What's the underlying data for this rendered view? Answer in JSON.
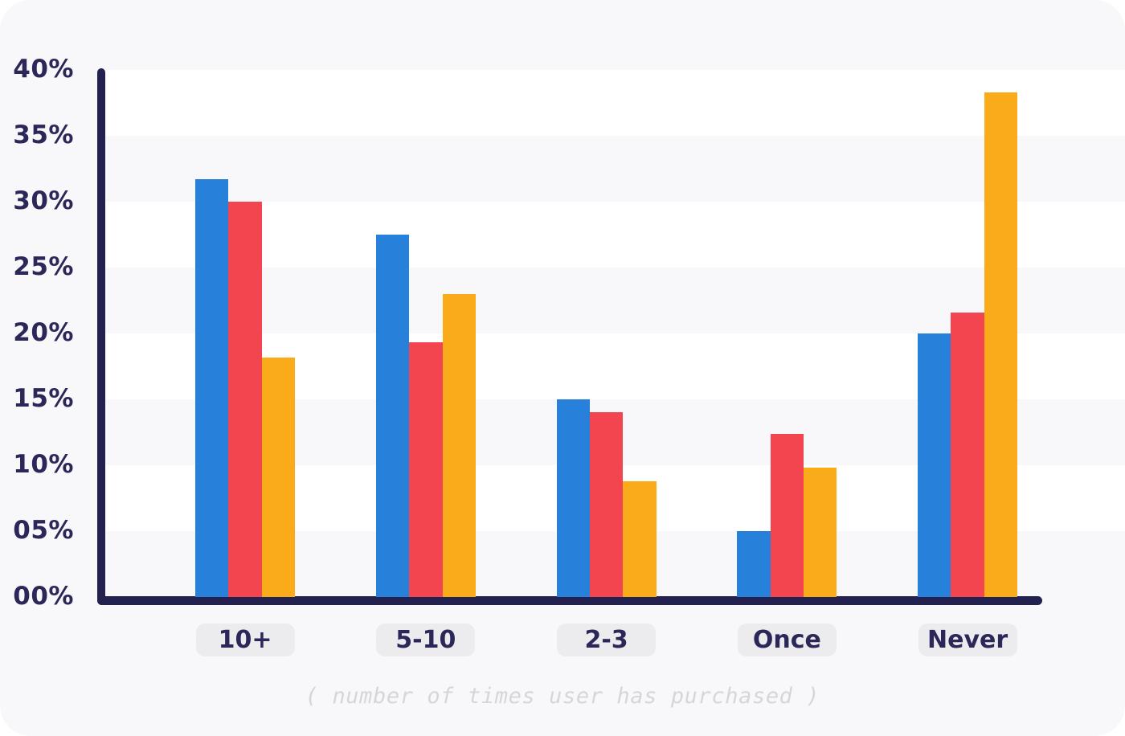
{
  "chart_data": {
    "type": "bar",
    "categories": [
      "10+",
      "5-10",
      "2-3",
      "Once",
      "Never"
    ],
    "series": [
      {
        "name": "blue",
        "color": "#2781db",
        "values": [
          31.7,
          27.5,
          15.0,
          5.0,
          20.0
        ]
      },
      {
        "name": "red",
        "color": "#f34550",
        "values": [
          30.0,
          19.3,
          14.0,
          12.4,
          21.6
        ]
      },
      {
        "name": "orange",
        "color": "#faab19",
        "values": [
          18.2,
          23.0,
          8.8,
          9.8,
          38.3
        ]
      }
    ],
    "title": "",
    "xlabel": "( number of times user has purchased )",
    "ylabel": "",
    "ylim": [
      0,
      40
    ],
    "y_ticks": [
      "40%",
      "35%",
      "30%",
      "25%",
      "20%",
      "15%",
      "10%",
      "05%",
      "00%"
    ],
    "grid": "alternating horizontal white bands every 5%",
    "legend": "none"
  },
  "colors": {
    "card_background": "#f8f8fa",
    "band_white": "#ffffff",
    "axis_navy": "#232150",
    "label_navy": "#2b2759",
    "pill_background": "#ececee",
    "caption_gray": "#d6d6d9"
  }
}
